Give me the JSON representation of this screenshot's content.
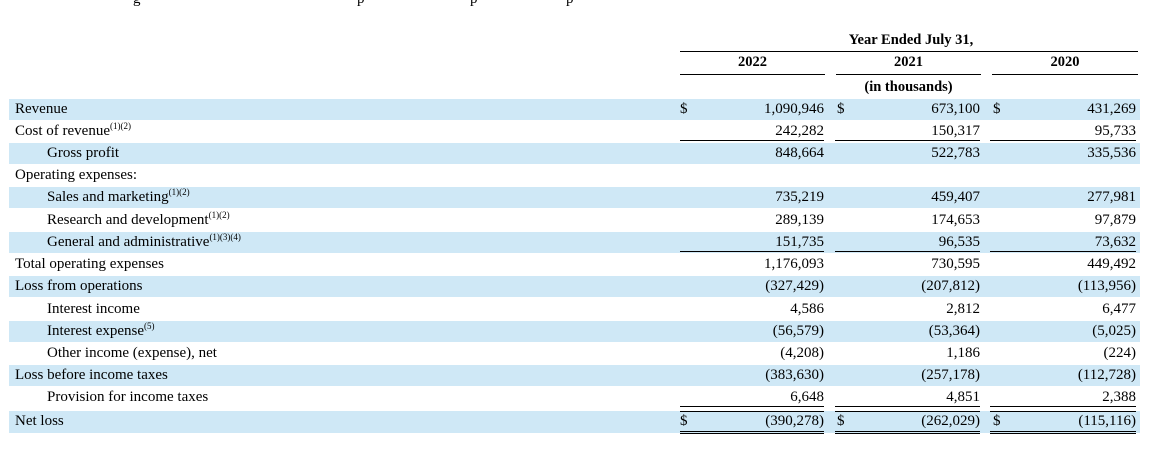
{
  "top_cut_text": [
    "g",
    "p",
    "p",
    "p"
  ],
  "header": {
    "period_title": "Year Ended July 31,",
    "years": [
      "2022",
      "2021",
      "2020"
    ],
    "units": "(in thousands)"
  },
  "currency_symbol": "$",
  "rows": [
    {
      "label": "Revenue",
      "sup": "",
      "indent": false,
      "shade": true,
      "dollar": true,
      "values": [
        "1,090,946",
        "673,100",
        "431,269"
      ]
    },
    {
      "label": "Cost of revenue",
      "sup": "(1)(2)",
      "indent": false,
      "shade": false,
      "dollar": false,
      "values": [
        "242,282",
        "150,317",
        "95,733"
      ]
    },
    {
      "label": "Gross profit",
      "sup": "",
      "indent": true,
      "shade": true,
      "dollar": false,
      "values": [
        "848,664",
        "522,783",
        "335,536"
      ]
    },
    {
      "label": "Operating expenses:",
      "sup": "",
      "indent": false,
      "shade": false,
      "dollar": false,
      "values": [
        "",
        "",
        ""
      ]
    },
    {
      "label": "Sales and marketing",
      "sup": "(1)(2)",
      "indent": true,
      "shade": true,
      "dollar": false,
      "values": [
        "735,219",
        "459,407",
        "277,981"
      ]
    },
    {
      "label": "Research and development",
      "sup": "(1)(2)",
      "indent": true,
      "shade": false,
      "dollar": false,
      "values": [
        "289,139",
        "174,653",
        "97,879"
      ]
    },
    {
      "label": "General and administrative",
      "sup": "(1)(3)(4)",
      "indent": true,
      "shade": true,
      "dollar": false,
      "values": [
        "151,735",
        "96,535",
        "73,632"
      ]
    },
    {
      "label": "Total operating expenses",
      "sup": "",
      "indent": false,
      "shade": false,
      "dollar": false,
      "values": [
        "1,176,093",
        "730,595",
        "449,492"
      ]
    },
    {
      "label": "Loss from operations",
      "sup": "",
      "indent": false,
      "shade": true,
      "dollar": false,
      "values": [
        "(327,429)",
        "(207,812)",
        "(113,956)"
      ]
    },
    {
      "label": "Interest income",
      "sup": "",
      "indent": true,
      "shade": false,
      "dollar": false,
      "values": [
        "4,586",
        "2,812",
        "6,477"
      ]
    },
    {
      "label": "Interest expense",
      "sup": "(5)",
      "indent": true,
      "shade": true,
      "dollar": false,
      "values": [
        "(56,579)",
        "(53,364)",
        "(5,025)"
      ]
    },
    {
      "label": "Other income (expense), net",
      "sup": "",
      "indent": true,
      "shade": false,
      "dollar": false,
      "values": [
        "(4,208)",
        "1,186",
        "(224)"
      ]
    },
    {
      "label": "Loss before income taxes",
      "sup": "",
      "indent": false,
      "shade": true,
      "dollar": false,
      "values": [
        "(383,630)",
        "(257,178)",
        "(112,728)"
      ]
    },
    {
      "label": "Provision for income taxes",
      "sup": "",
      "indent": true,
      "shade": false,
      "dollar": false,
      "values": [
        "6,648",
        "4,851",
        "2,388"
      ]
    },
    {
      "label": "Net loss",
      "sup": "",
      "indent": false,
      "shade": true,
      "dollar": true,
      "values": [
        "(390,278)",
        "(262,029)",
        "(115,116)"
      ]
    }
  ]
}
